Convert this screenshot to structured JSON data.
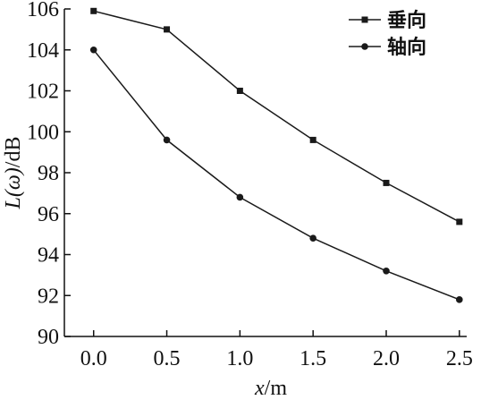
{
  "chart_data": {
    "type": "line",
    "title": "",
    "xlabel_var": "x",
    "xlabel_unit": "/m",
    "ylabel_var": "L(ω)",
    "ylabel_unit": "/dB",
    "xlim": [
      -0.2,
      2.55
    ],
    "ylim": [
      90,
      106
    ],
    "x": [
      0.0,
      0.5,
      1.0,
      1.5,
      2.0,
      2.5
    ],
    "x_tick_labels": [
      "0.0",
      "0.5",
      "1.0",
      "1.5",
      "2.0",
      "2.5"
    ],
    "y_ticks": [
      90,
      92,
      94,
      96,
      98,
      100,
      102,
      104,
      106
    ],
    "y_tick_labels": [
      "90",
      "92",
      "94",
      "96",
      "98",
      "100",
      "102",
      "104",
      "106"
    ],
    "grid": false,
    "legend_position": "top-right",
    "series": [
      {
        "name": "垂向",
        "marker": "square",
        "color": "#1a1a1a",
        "values": [
          105.9,
          105.0,
          102.0,
          99.6,
          97.5,
          95.6
        ]
      },
      {
        "name": "轴向",
        "marker": "circle",
        "color": "#1a1a1a",
        "values": [
          104.0,
          99.6,
          96.8,
          94.8,
          93.2,
          91.8
        ]
      }
    ]
  }
}
